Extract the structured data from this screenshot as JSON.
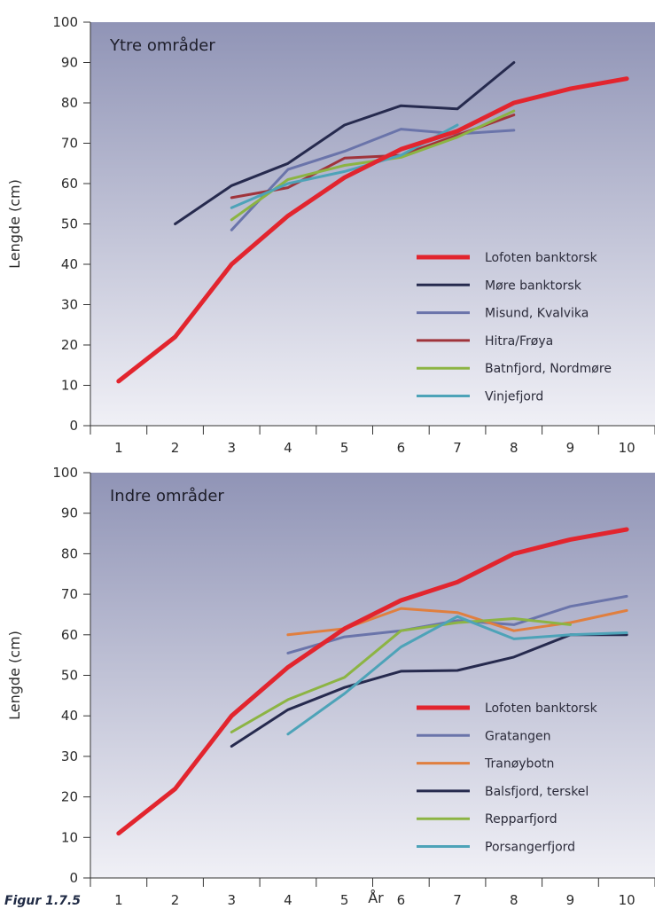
{
  "figure": {
    "caption": "Figur 1.7.5",
    "xlabel": "År"
  },
  "chart_data": [
    {
      "type": "line",
      "title": "Ytre områder",
      "ylabel": "Lengde (cm)",
      "xlim": [
        0.5,
        10.5
      ],
      "ylim": [
        0,
        100
      ],
      "xticks": [
        1,
        2,
        3,
        4,
        5,
        6,
        7,
        8,
        9,
        10
      ],
      "xtick_labels": [
        "1",
        "2",
        "3",
        "4",
        "5",
        "6",
        "7",
        "8",
        "9",
        "10"
      ],
      "yticks": [
        0,
        10,
        20,
        30,
        40,
        50,
        60,
        70,
        80,
        90,
        100
      ],
      "legend_position": "bottom-right",
      "background": [
        "#9094b6",
        "#f0f0f6"
      ],
      "series": [
        {
          "name": "Lofoten banktorsk",
          "color": "#e2252e",
          "width": 5,
          "x": [
            1,
            2,
            3,
            4,
            5,
            6,
            7,
            8,
            9,
            10
          ],
          "y": [
            11,
            22,
            40,
            52,
            61.5,
            68.5,
            73,
            80,
            83.5,
            86
          ]
        },
        {
          "name": "Møre banktorsk",
          "color": "#262a4e",
          "width": 3,
          "x": [
            2,
            3,
            4,
            5,
            6,
            7,
            8
          ],
          "y": [
            50,
            59.5,
            65,
            74.5,
            79.3,
            78.5,
            90
          ]
        },
        {
          "name": "Misund, Kvalvika",
          "color": "#6a74aa",
          "width": 3,
          "x": [
            3,
            4,
            5,
            6,
            7,
            8
          ],
          "y": [
            48.5,
            63.5,
            68,
            73.5,
            72.3,
            73.2
          ]
        },
        {
          "name": "Hitra/Frøya",
          "color": "#a0343b",
          "width": 3,
          "x": [
            3,
            4,
            5,
            6,
            7,
            8
          ],
          "y": [
            56.5,
            59,
            66.3,
            67,
            72,
            77
          ]
        },
        {
          "name": "Batnfjord, Nordmøre",
          "color": "#8cb443",
          "width": 3,
          "x": [
            3,
            4,
            5,
            6,
            7,
            8
          ],
          "y": [
            51,
            61,
            64.5,
            66.5,
            71.5,
            78
          ]
        },
        {
          "name": "Vinjefjord",
          "color": "#4da3b8",
          "width": 3,
          "x": [
            3,
            4,
            5,
            6,
            7
          ],
          "y": [
            54,
            60,
            63,
            67,
            74.5
          ]
        }
      ]
    },
    {
      "type": "line",
      "title": "Indre områder",
      "ylabel": "Lengde (cm)",
      "xlim": [
        0.5,
        10.5
      ],
      "ylim": [
        0,
        100
      ],
      "xticks": [
        1,
        2,
        3,
        4,
        5,
        6,
        7,
        8,
        9,
        10
      ],
      "xtick_labels": [
        "1",
        "2",
        "3",
        "4",
        "5",
        "6",
        "7",
        "8",
        "9",
        "10"
      ],
      "yticks": [
        0,
        10,
        20,
        30,
        40,
        50,
        60,
        70,
        80,
        90,
        100
      ],
      "legend_position": "bottom-right",
      "background": [
        "#9094b6",
        "#f0f0f6"
      ],
      "series": [
        {
          "name": "Lofoten banktorsk",
          "color": "#e2252e",
          "width": 5,
          "x": [
            1,
            2,
            3,
            4,
            5,
            6,
            7,
            8,
            9,
            10
          ],
          "y": [
            11,
            22,
            40,
            52,
            61.5,
            68.5,
            73,
            80,
            83.5,
            86
          ]
        },
        {
          "name": "Gratangen",
          "color": "#6a74aa",
          "width": 3,
          "x": [
            4,
            5,
            6,
            7,
            8,
            9,
            10
          ],
          "y": [
            55.5,
            59.5,
            61,
            63.5,
            62.5,
            67,
            69.5
          ]
        },
        {
          "name": "Tranøybotn",
          "color": "#e07f3f",
          "width": 3,
          "x": [
            4,
            5,
            6,
            7,
            8,
            9,
            10
          ],
          "y": [
            60,
            61.5,
            66.5,
            65.5,
            61,
            63,
            66
          ]
        },
        {
          "name": "Balsfjord, terskel",
          "color": "#262a4e",
          "width": 3,
          "x": [
            3,
            4,
            5,
            6,
            7,
            8,
            9,
            10
          ],
          "y": [
            32.5,
            41.5,
            47,
            51,
            51.2,
            54.5,
            60,
            60
          ]
        },
        {
          "name": "Repparfjord",
          "color": "#8cb443",
          "width": 3,
          "x": [
            3,
            4,
            5,
            6,
            7,
            8,
            9
          ],
          "y": [
            36,
            44,
            49.5,
            61,
            63,
            64,
            62.5
          ]
        },
        {
          "name": "Porsangerfjord",
          "color": "#4da3b8",
          "width": 3,
          "x": [
            4,
            5,
            6,
            7,
            8,
            9,
            10
          ],
          "y": [
            35.5,
            45.5,
            57,
            64.5,
            59,
            60,
            60.5
          ]
        }
      ]
    }
  ]
}
